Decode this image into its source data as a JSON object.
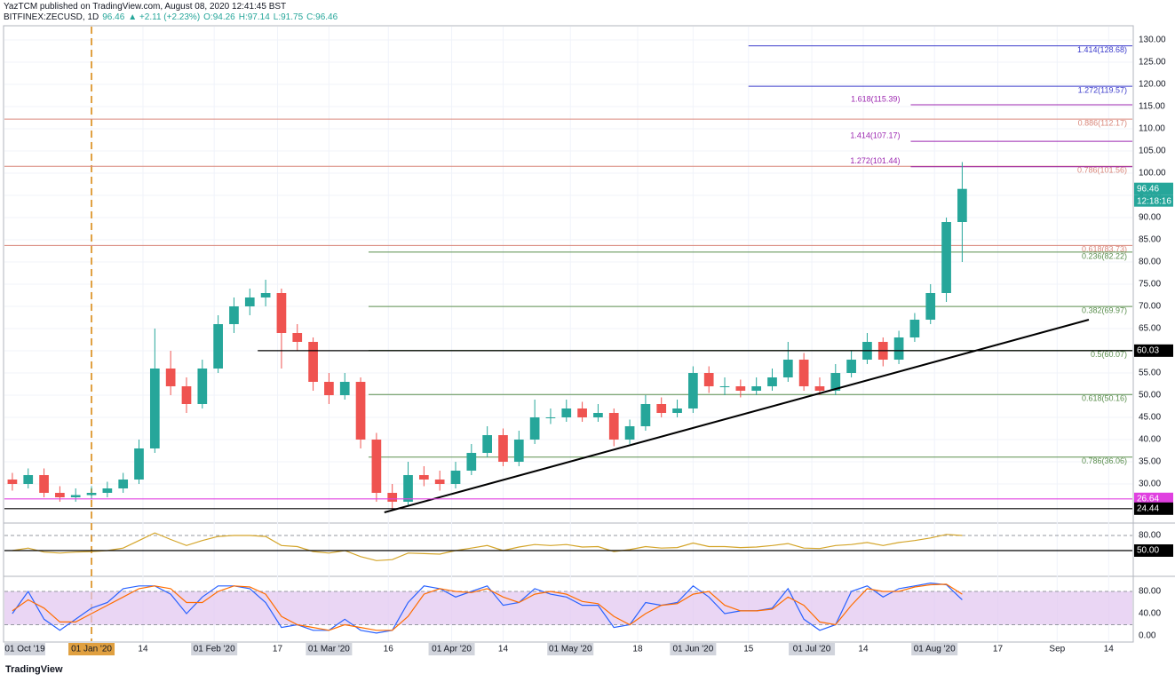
{
  "header": {
    "publisher": "YazTCM published on TradingView.com, August 08, 2020 12:41:45 BST",
    "symbol": "BITFINEX:ZECUSD, 1D",
    "last": "96.46",
    "change": "▲ +2.11 (+2.23%)",
    "open": "O:94.26",
    "high": "H:97.14",
    "low": "L:91.75",
    "close": "C:96.46"
  },
  "footer": {
    "logo": "TradingView"
  },
  "chart_data": [
    {
      "type": "candlestick",
      "up_color": "#26a69a",
      "down_color": "#ef5350",
      "grid": true,
      "xlim": [
        "2019-12-10",
        "2020-09-20"
      ],
      "ylim": [
        21.4,
        133
      ],
      "x": [
        "2019-12-12",
        "2019-12-16",
        "2019-12-20",
        "2019-12-24",
        "2019-12-28",
        "2020-01-01",
        "2020-01-05",
        "2020-01-09",
        "2020-01-13",
        "2020-01-17",
        "2020-01-21",
        "2020-01-25",
        "2020-01-29",
        "2020-02-02",
        "2020-02-06",
        "2020-02-10",
        "2020-02-14",
        "2020-02-18",
        "2020-02-22",
        "2020-02-26",
        "2020-03-01",
        "2020-03-05",
        "2020-03-09",
        "2020-03-13",
        "2020-03-17",
        "2020-03-21",
        "2020-03-25",
        "2020-03-29",
        "2020-04-02",
        "2020-04-06",
        "2020-04-10",
        "2020-04-14",
        "2020-04-18",
        "2020-04-22",
        "2020-04-26",
        "2020-04-30",
        "2020-05-04",
        "2020-05-08",
        "2020-05-12",
        "2020-05-16",
        "2020-05-20",
        "2020-05-24",
        "2020-05-28",
        "2020-06-01",
        "2020-06-05",
        "2020-06-09",
        "2020-06-13",
        "2020-06-17",
        "2020-06-21",
        "2020-06-25",
        "2020-06-29",
        "2020-07-03",
        "2020-07-07",
        "2020-07-11",
        "2020-07-15",
        "2020-07-19",
        "2020-07-23",
        "2020-07-27",
        "2020-07-31",
        "2020-08-04",
        "2020-08-08"
      ],
      "open": [
        31,
        30,
        32,
        28,
        27,
        27.5,
        28,
        29,
        31,
        38,
        56,
        52,
        48,
        56,
        66,
        70,
        72,
        73,
        64,
        62,
        53,
        50,
        53,
        40,
        28,
        26,
        32,
        31,
        30,
        33,
        37,
        41,
        35,
        40,
        45,
        45,
        47,
        45,
        46,
        40,
        43,
        48,
        46,
        47,
        55,
        52,
        52,
        51,
        52,
        54,
        58,
        52,
        51,
        55,
        58,
        62,
        58,
        63,
        67,
        73,
        89
      ],
      "high": [
        32.5,
        33.5,
        33.5,
        29.5,
        29,
        29.5,
        30.5,
        32.5,
        40,
        65,
        60,
        54,
        58,
        68,
        72,
        74,
        76,
        74,
        66,
        63,
        55,
        55,
        54,
        41.5,
        30,
        35,
        34,
        33,
        35,
        39,
        43,
        42.5,
        42,
        49,
        47,
        49,
        48.5,
        48,
        47,
        44.5,
        50,
        49.5,
        49,
        56.5,
        56.5,
        54,
        53.5,
        54,
        56,
        62,
        59.5,
        54,
        57,
        60,
        64,
        63,
        64.5,
        68.5,
        75,
        90,
        102.5
      ],
      "low": [
        28.5,
        29,
        27,
        26,
        26,
        26.5,
        27,
        28,
        30,
        37,
        50,
        46,
        47,
        55,
        64,
        68,
        70,
        56,
        60,
        51,
        48,
        49,
        38,
        26,
        24,
        25,
        29.5,
        28.5,
        29,
        32,
        36,
        34,
        34,
        39,
        43.5,
        44,
        44,
        44,
        38.5,
        39,
        42,
        45,
        45,
        46,
        50.5,
        50,
        49.5,
        50,
        51,
        53,
        51,
        50,
        50,
        54,
        57,
        56.5,
        57,
        62,
        66,
        71,
        80
      ],
      "close": [
        30,
        32,
        28,
        27,
        27.5,
        28,
        29,
        31,
        38,
        56,
        52,
        48,
        56,
        66,
        70,
        72,
        73,
        64,
        62,
        53,
        50,
        53,
        40,
        28,
        26,
        32,
        31,
        30,
        33,
        37,
        41,
        35,
        40,
        45,
        45,
        47,
        45,
        46,
        40,
        43,
        48,
        46,
        47,
        55,
        52,
        52,
        51,
        52,
        54,
        58,
        52,
        51,
        55,
        58,
        62,
        58,
        63,
        67,
        73,
        89,
        96.46
      ],
      "yticks": [
        {
          "value": 30,
          "label": "30.00"
        },
        {
          "value": 35,
          "label": "35.00"
        },
        {
          "value": 40,
          "label": "40.00"
        },
        {
          "value": 45,
          "label": "45.00"
        },
        {
          "value": 50,
          "label": "50.00"
        },
        {
          "value": 55,
          "label": "55.00"
        },
        {
          "value": 60,
          "label": "60.00"
        },
        {
          "value": 65,
          "label": "65.00"
        },
        {
          "value": 70,
          "label": "70.00"
        },
        {
          "value": 75,
          "label": "75.00"
        },
        {
          "value": 80,
          "label": "80.00"
        },
        {
          "value": 85,
          "label": "85.00"
        },
        {
          "value": 90,
          "label": "90.00"
        },
        {
          "value": 95,
          "label": "95.00"
        },
        {
          "value": 100,
          "label": "100.00"
        },
        {
          "value": 105,
          "label": "105.00"
        },
        {
          "value": 110,
          "label": "110.00"
        },
        {
          "value": 115,
          "label": "115.00"
        },
        {
          "value": 120,
          "label": "120.00"
        },
        {
          "value": 125,
          "label": "125.00"
        },
        {
          "value": 130,
          "label": "130.00"
        }
      ],
      "xticks": [
        {
          "value": "2020-01-01",
          "label": "01 Jan '20"
        },
        {
          "value": "2020-01-14",
          "label": "14"
        },
        {
          "value": "2020-02-01",
          "label": "01 Feb '20"
        },
        {
          "value": "2020-02-17",
          "label": "17"
        },
        {
          "value": "2020-03-01",
          "label": "01 Mar '20"
        },
        {
          "value": "2020-03-16",
          "label": "16"
        },
        {
          "value": "2020-04-01",
          "label": "01 Apr '20"
        },
        {
          "value": "2020-04-14",
          "label": "14"
        },
        {
          "value": "2020-05-01",
          "label": "01 May '20"
        },
        {
          "value": "2020-05-18",
          "label": "18"
        },
        {
          "value": "2020-06-01",
          "label": "01 Jun '20"
        },
        {
          "value": "2020-06-15",
          "label": "15"
        },
        {
          "value": "2020-07-01",
          "label": "01 Jul '20"
        },
        {
          "value": "2020-07-14",
          "label": "14"
        },
        {
          "value": "2020-08-01",
          "label": "01 Aug '20"
        },
        {
          "value": "2020-08-17",
          "label": "17"
        },
        {
          "value": "2020-09-01",
          "label": "Sep"
        },
        {
          "value": "2020-09-14",
          "label": "14"
        }
      ],
      "range_start_label": "01 Oct '19",
      "vline": {
        "x": "2020-01-01",
        "color": "#e0a040"
      },
      "levels": [
        {
          "value": 128.68,
          "label": "1.414(128.68)",
          "color": "#3d3dcc",
          "start": "2020-06-15",
          "label_side": "right"
        },
        {
          "value": 119.57,
          "label": "1.272(119.57)",
          "color": "#3d3dcc",
          "start": "2020-06-15",
          "label_side": "right"
        },
        {
          "value": 115.39,
          "label": "1.618(115.39)",
          "color": "#9c27b0",
          "start": "2020-07-26",
          "label_side": "left"
        },
        {
          "value": 112.17,
          "label": "0.886(112.17)",
          "color": "#d9877b",
          "start": "2019-12-10",
          "label_side": "right"
        },
        {
          "value": 107.17,
          "label": "1.414(107.17)",
          "color": "#9c27b0",
          "start": "2020-07-26",
          "label_side": "left"
        },
        {
          "value": 101.56,
          "label": "0.786(101.56)",
          "color": "#d9877b",
          "start": "2019-12-10",
          "label_side": "right"
        },
        {
          "value": 101.44,
          "label": "1.272(101.44)",
          "color": "#9c27b0",
          "start": "2020-07-26",
          "label_side": "left"
        },
        {
          "value": 83.73,
          "label": "0.618(83.73)",
          "color": "#d9877b",
          "start": "2019-12-10",
          "label_side": "right"
        },
        {
          "value": 82.22,
          "label": "0.236(82.22)",
          "color": "#5b8f4e",
          "start": "2020-03-11",
          "label_side": "right"
        },
        {
          "value": 69.97,
          "label": "0.382(69.97)",
          "color": "#5b8f4e",
          "start": "2020-03-11",
          "label_side": "right"
        },
        {
          "value": 60.07,
          "label": "0.5(60.07)",
          "color": "#5b8f4e",
          "start": "2020-03-11",
          "label_side": "right"
        },
        {
          "value": 50.16,
          "label": "0.618(50.16)",
          "color": "#5b8f4e",
          "start": "2020-03-11",
          "label_side": "right"
        },
        {
          "value": 36.06,
          "label": "0.786(36.06)",
          "color": "#5b8f4e",
          "start": "2020-03-11",
          "label_side": "right"
        }
      ],
      "trendline": {
        "x": [
          "2020-03-15",
          "2020-09-09"
        ],
        "values": [
          23.6,
          67
        ],
        "color": "#000000"
      },
      "tags": [
        {
          "value": 96.46,
          "color": "#26a69a"
        },
        {
          "value": 60.03,
          "color": "#000000",
          "start": "2020-02-12"
        },
        {
          "value": 26.64,
          "color": "#e040e0",
          "start": "2019-12-10"
        },
        {
          "value": 24.44,
          "color": "#000000",
          "start": "2019-12-10"
        }
      ],
      "countdown": "12:18:16"
    },
    {
      "type": "line",
      "ylim": [
        0.6,
        102.9
      ],
      "series": [
        {
          "color": "#d4a52a",
          "values": [
            50,
            55,
            47,
            45,
            47,
            48,
            50,
            55,
            70,
            85,
            72,
            60,
            70,
            78,
            80,
            80,
            78,
            60,
            58,
            48,
            45,
            50,
            38,
            30,
            32,
            45,
            44,
            43,
            50,
            55,
            60,
            50,
            57,
            62,
            60,
            62,
            57,
            58,
            48,
            52,
            58,
            55,
            56,
            65,
            58,
            58,
            56,
            57,
            60,
            64,
            55,
            54,
            60,
            62,
            66,
            60,
            66,
            70,
            75,
            82,
            80
          ]
        }
      ],
      "yticks": [
        {
          "value": 80,
          "label": "80.00"
        }
      ],
      "tags": [
        {
          "value": 50,
          "label": "50.00",
          "color": "#000000",
          "start": "2019-12-10"
        }
      ]
    },
    {
      "type": "line",
      "ylim": [
        -9.6,
        105.6
      ],
      "band": [
        20,
        80
      ],
      "band_color": "#e1c4f0",
      "series": [
        {
          "color": "#2962ff",
          "values": [
            40,
            80,
            30,
            10,
            30,
            50,
            60,
            85,
            90,
            90,
            75,
            40,
            70,
            90,
            90,
            85,
            60,
            15,
            20,
            10,
            10,
            30,
            10,
            5,
            10,
            60,
            90,
            85,
            70,
            80,
            90,
            55,
            60,
            85,
            75,
            70,
            55,
            55,
            15,
            20,
            60,
            55,
            60,
            90,
            70,
            40,
            45,
            45,
            50,
            85,
            30,
            10,
            20,
            80,
            90,
            70,
            85,
            90,
            95,
            92,
            65
          ]
        },
        {
          "color": "#ff6d00",
          "values": [
            45,
            65,
            50,
            25,
            25,
            40,
            55,
            70,
            85,
            90,
            85,
            60,
            60,
            80,
            90,
            88,
            75,
            35,
            20,
            15,
            10,
            20,
            15,
            10,
            10,
            35,
            75,
            85,
            80,
            78,
            85,
            70,
            60,
            75,
            80,
            75,
            62,
            58,
            35,
            20,
            40,
            55,
            58,
            75,
            80,
            55,
            45,
            45,
            48,
            70,
            55,
            25,
            20,
            55,
            85,
            80,
            80,
            88,
            92,
            93,
            75
          ]
        }
      ],
      "yticks": [
        {
          "value": 80,
          "label": "80.00"
        },
        {
          "value": 40,
          "label": "40.00"
        },
        {
          "value": 0,
          "label": "0.00"
        }
      ]
    }
  ]
}
